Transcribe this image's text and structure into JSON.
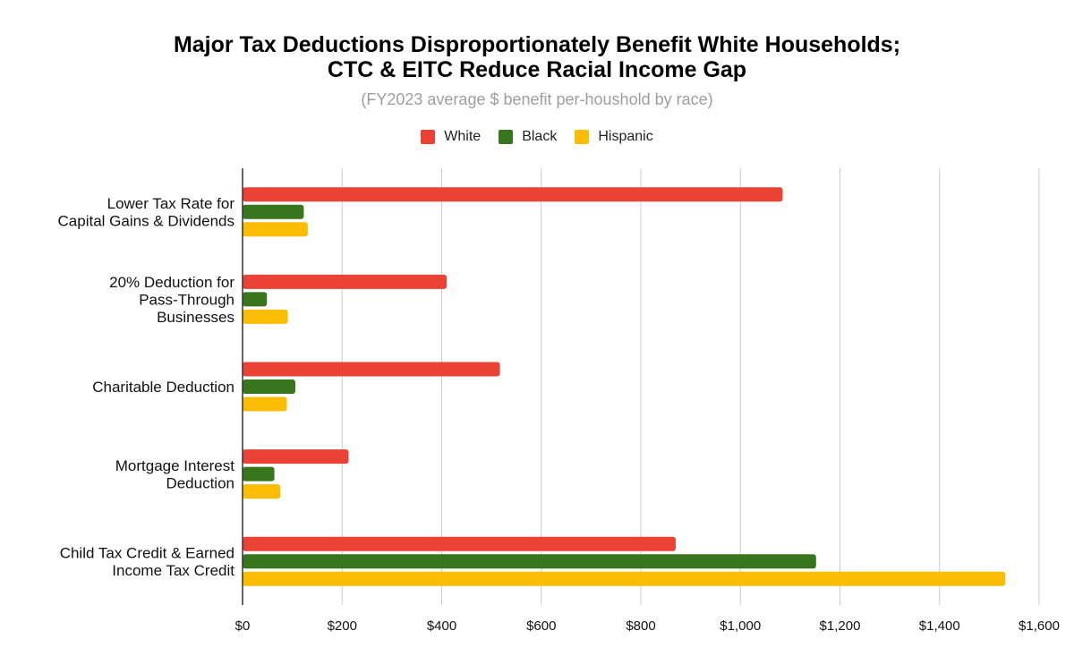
{
  "chart_data": {
    "type": "bar",
    "orientation": "horizontal",
    "title_lines": [
      "Major Tax Deductions Disproportionately Benefit White Households;",
      "CTC & EITC Reduce Racial Income Gap"
    ],
    "subtitle": "(FY2023 average $ benefit per-houshold by race)",
    "legend_position": "top",
    "grid": true,
    "categories": [
      [
        "Lower Tax Rate for",
        "Capital Gains & Dividends"
      ],
      [
        "20% Deduction for",
        "Pass-Through",
        "Businesses"
      ],
      [
        "Charitable Deduction"
      ],
      [
        "Mortgage Interest",
        "Deduction"
      ],
      [
        "Child Tax Credit & Earned",
        "Income Tax Credit"
      ]
    ],
    "series": [
      {
        "name": "White",
        "color": "#ea4335",
        "values": [
          1085,
          410,
          517,
          213,
          870
        ]
      },
      {
        "name": "Black",
        "color": "#38761d",
        "values": [
          123,
          49,
          106,
          64,
          1152
        ]
      },
      {
        "name": "Hispanic",
        "color": "#fbbc04",
        "values": [
          131,
          91,
          89,
          76,
          1532
        ]
      }
    ],
    "xlim": [
      0,
      1600
    ],
    "xticks": [
      0,
      200,
      400,
      600,
      800,
      1000,
      1200,
      1400,
      1600
    ],
    "xtick_labels": [
      "$0",
      "$200",
      "$400",
      "$600",
      "$800",
      "$1,000",
      "$1,200",
      "$1,400",
      "$1,600"
    ]
  }
}
